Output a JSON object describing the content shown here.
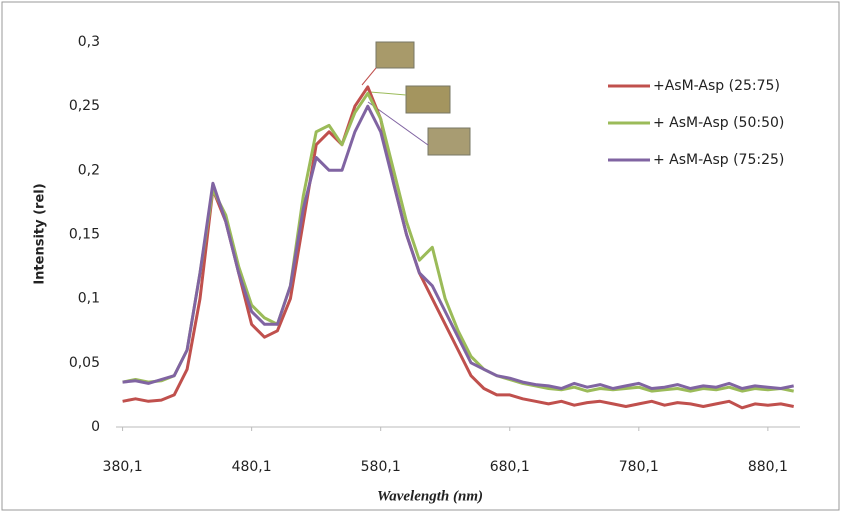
{
  "chart_data": {
    "type": "line",
    "y_label": "Intensity (rel)",
    "x_label": "Wavelength (nm)",
    "x": [
      380.1,
      390.1,
      400.1,
      410.1,
      420.1,
      430.1,
      440.1,
      450.1,
      460.1,
      470.1,
      480.1,
      490.1,
      500.1,
      510.1,
      520.1,
      530.1,
      540.1,
      550.1,
      560.1,
      570.1,
      580.1,
      590.1,
      600.1,
      610.1,
      620.1,
      630.1,
      640.1,
      650.1,
      660.1,
      670.1,
      680.1,
      690.1,
      700.1,
      710.1,
      720.1,
      730.1,
      740.1,
      750.1,
      760.1,
      770.1,
      780.1,
      790.1,
      800.1,
      810.1,
      820.1,
      830.1,
      840.1,
      850.1,
      860.1,
      870.1,
      880.1,
      890.1,
      900.1
    ],
    "series": [
      {
        "name": "+AsM-Asp (25:75)",
        "color": "#c0504d",
        "values": [
          0.02,
          0.022,
          0.02,
          0.021,
          0.025,
          0.045,
          0.1,
          0.185,
          0.16,
          0.12,
          0.08,
          0.07,
          0.075,
          0.1,
          0.16,
          0.22,
          0.23,
          0.22,
          0.25,
          0.265,
          0.24,
          0.19,
          0.15,
          0.12,
          0.1,
          0.08,
          0.06,
          0.04,
          0.03,
          0.025,
          0.025,
          0.022,
          0.02,
          0.018,
          0.02,
          0.017,
          0.019,
          0.02,
          0.018,
          0.016,
          0.018,
          0.02,
          0.017,
          0.019,
          0.018,
          0.016,
          0.018,
          0.02,
          0.015,
          0.018,
          0.017,
          0.018,
          0.016
        ]
      },
      {
        "name": "+ AsM-Asp (50:50)",
        "color": "#9bbb59",
        "values": [
          0.035,
          0.037,
          0.035,
          0.036,
          0.04,
          0.06,
          0.12,
          0.185,
          0.165,
          0.125,
          0.095,
          0.085,
          0.08,
          0.11,
          0.18,
          0.23,
          0.235,
          0.22,
          0.245,
          0.26,
          0.24,
          0.2,
          0.16,
          0.13,
          0.14,
          0.1,
          0.075,
          0.055,
          0.045,
          0.04,
          0.037,
          0.034,
          0.032,
          0.03,
          0.029,
          0.031,
          0.028,
          0.03,
          0.029,
          0.03,
          0.031,
          0.028,
          0.029,
          0.03,
          0.028,
          0.03,
          0.029,
          0.031,
          0.028,
          0.03,
          0.029,
          0.03,
          0.028
        ]
      },
      {
        "name": "+ AsM-Asp (75:25)",
        "color": "#8064a2",
        "values": [
          0.035,
          0.036,
          0.034,
          0.037,
          0.04,
          0.06,
          0.12,
          0.19,
          0.16,
          0.12,
          0.09,
          0.08,
          0.08,
          0.11,
          0.17,
          0.21,
          0.2,
          0.2,
          0.23,
          0.25,
          0.23,
          0.19,
          0.15,
          0.12,
          0.11,
          0.09,
          0.07,
          0.05,
          0.045,
          0.04,
          0.038,
          0.035,
          0.033,
          0.032,
          0.03,
          0.034,
          0.031,
          0.033,
          0.03,
          0.032,
          0.034,
          0.03,
          0.031,
          0.033,
          0.03,
          0.032,
          0.031,
          0.034,
          0.03,
          0.032,
          0.031,
          0.03,
          0.032
        ]
      }
    ],
    "xlim": [
      375,
      905
    ],
    "ylim": [
      0,
      0.3
    ],
    "xticks": [
      {
        "value": 380.1,
        "label": "380,1"
      },
      {
        "value": 480.1,
        "label": "480,1"
      },
      {
        "value": 580.1,
        "label": "580,1"
      },
      {
        "value": 680.1,
        "label": "680,1"
      },
      {
        "value": 780.1,
        "label": "780,1"
      },
      {
        "value": 880.1,
        "label": "880,1"
      }
    ],
    "yticks": [
      0,
      {
        "value": 0.05,
        "label": "0,05"
      },
      {
        "value": 0.1,
        "label": "0,1"
      },
      {
        "value": 0.15,
        "label": "0,15"
      },
      {
        "value": 0.2,
        "label": "0,2"
      },
      {
        "value": 0.25,
        "label": "0,25"
      },
      {
        "value": 0.3,
        "label": "0,3"
      }
    ],
    "grid": false,
    "legend": "upper right"
  }
}
